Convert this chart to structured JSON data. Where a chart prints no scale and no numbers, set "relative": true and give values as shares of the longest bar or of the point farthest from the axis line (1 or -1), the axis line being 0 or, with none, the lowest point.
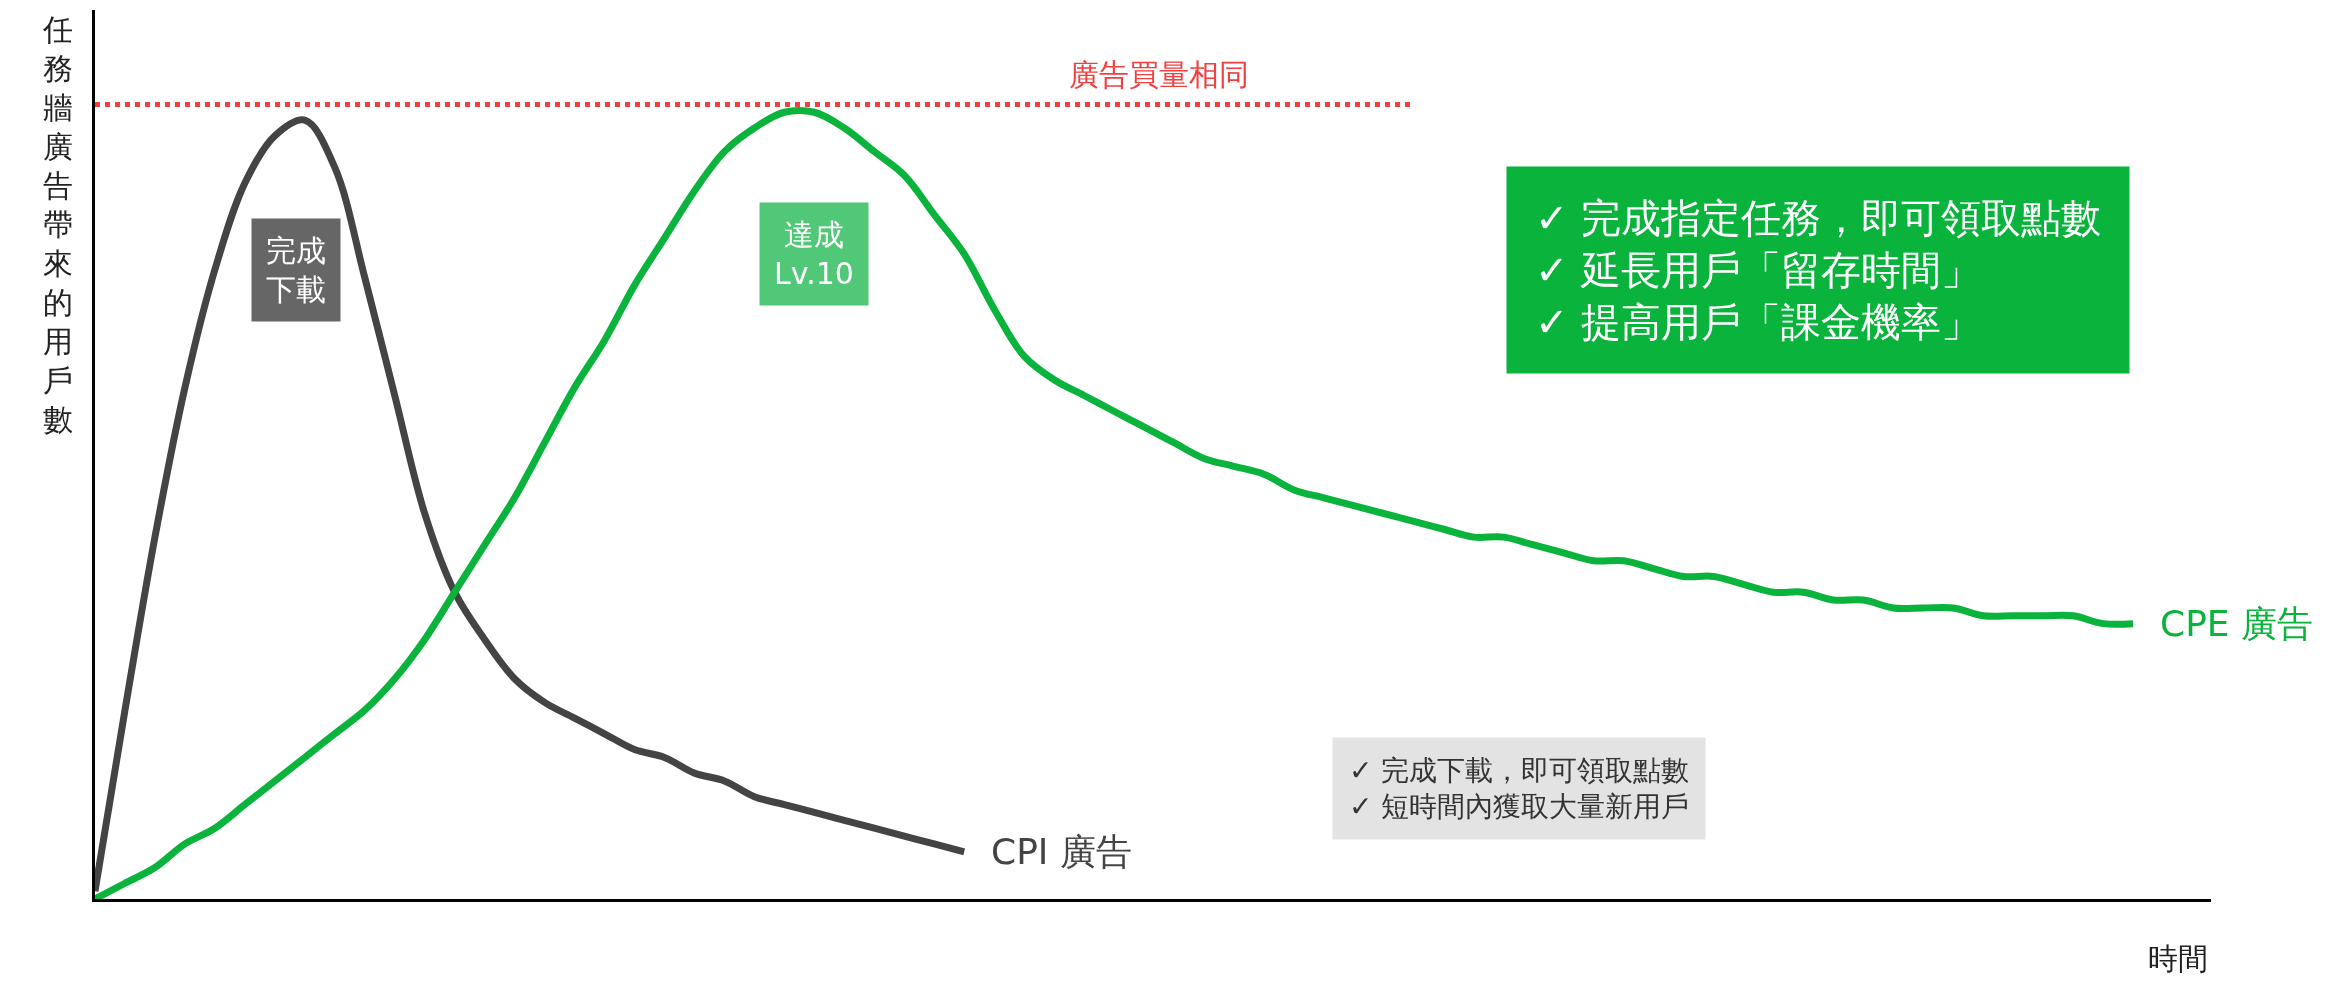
{
  "chart_data": {
    "type": "line",
    "relative": true,
    "xlabel": "時間",
    "ylabel": "任務牆廣告帶來的用戶數",
    "categories": [
      null,
      null,
      null,
      null,
      null,
      null,
      null,
      null,
      null,
      null,
      null,
      null,
      null,
      null,
      null,
      null,
      null,
      null,
      null,
      null,
      null,
      null,
      null,
      null,
      null,
      null,
      null,
      null,
      null,
      null,
      null,
      null,
      null,
      null,
      null,
      null,
      null,
      null,
      null,
      null,
      null,
      null,
      null,
      null,
      null,
      null,
      null,
      null,
      null,
      null,
      null,
      null,
      null,
      null,
      null,
      null,
      null,
      null,
      null,
      null,
      null,
      null,
      null,
      null,
      null,
      null,
      null,
      null,
      null,
      null,
      null
    ],
    "series": [
      {
        "name": "CPI 廣告",
        "color": "#444444",
        "values": [
          0.01,
          0.24,
          0.46,
          0.65,
          0.8,
          0.91,
          0.97,
          0.99,
          0.93,
          0.79,
          0.64,
          0.49,
          0.39,
          0.33,
          0.28,
          0.25,
          0.23,
          0.21,
          0.19,
          0.18,
          0.16,
          0.15,
          0.13,
          0.12,
          0.11,
          0.1,
          0.09,
          0.08,
          0.07,
          0.06,
          null,
          null,
          null,
          null,
          null,
          null,
          null,
          null,
          null,
          null,
          null,
          null,
          null,
          null,
          null,
          null,
          null,
          null,
          null,
          null,
          null,
          null,
          null,
          null,
          null,
          null,
          null,
          null,
          null,
          null,
          null,
          null,
          null,
          null,
          null,
          null,
          null,
          null,
          null,
          null,
          null
        ]
      },
      {
        "name": "CPE 廣告",
        "color": "#0ab33c",
        "values": [
          0.0,
          0.02,
          0.04,
          0.07,
          0.09,
          0.12,
          0.15,
          0.18,
          0.21,
          0.24,
          0.28,
          0.33,
          0.39,
          0.45,
          0.51,
          0.58,
          0.65,
          0.71,
          0.78,
          0.84,
          0.9,
          0.95,
          0.98,
          1.0,
          1.0,
          0.98,
          0.95,
          0.92,
          0.87,
          0.82,
          0.75,
          0.69,
          0.66,
          0.64,
          0.62,
          0.6,
          0.58,
          0.56,
          0.55,
          0.54,
          0.52,
          0.51,
          0.5,
          0.49,
          0.48,
          0.47,
          0.46,
          0.46,
          0.45,
          0.44,
          0.43,
          0.43,
          0.42,
          0.41,
          0.41,
          0.4,
          0.39,
          0.39,
          0.38,
          0.38,
          0.37,
          0.37,
          0.37,
          0.36,
          0.36,
          0.36,
          0.36,
          0.35,
          0.35,
          null,
          null
        ]
      }
    ],
    "ref_lines": [
      {
        "axis": "y",
        "value": 1.01,
        "label": "廣告買量相同",
        "color": "#f04040",
        "line_style": "dotted"
      }
    ],
    "annotations": [
      "完成下載",
      "達成Lv.10",
      "✓ 完成指定任務，即可領取點數\n✓ 延長用戶「留存時間」\n✓ 提高用戶「課金機率」",
      "✓ 完成下載，即可領取點數\n✓ 短時間內獲取大量新用戶"
    ]
  }
}
